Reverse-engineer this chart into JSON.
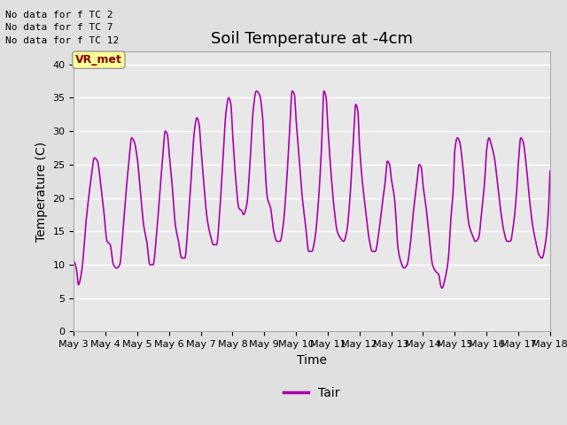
{
  "title": "Soil Temperature at -4cm",
  "xlabel": "Time",
  "ylabel": "Temperature (C)",
  "ylim": [
    0,
    42
  ],
  "yticks": [
    0,
    5,
    10,
    15,
    20,
    25,
    30,
    35,
    40
  ],
  "line_color": "#AA00AA",
  "line_label": "Tair",
  "bg_color": "#E8E8E8",
  "fig_bg_color": "#E0E0E0",
  "annotations": [
    "No data for f TC 2",
    "No data for f TC 7",
    "No data for f TC 12"
  ],
  "legend_label_box": "VR_met",
  "x_tick_labels": [
    "May 3",
    "May 4",
    "May 5",
    "May 6",
    "May 7",
    "May 8",
    "May 9",
    "May 10",
    "May 11",
    "May 12",
    "May 13",
    "May 14",
    "May 15",
    "May 16",
    "May 17",
    "May 18"
  ],
  "grid_color": "#FFFFFF",
  "spine_color": "#AAAAAA"
}
